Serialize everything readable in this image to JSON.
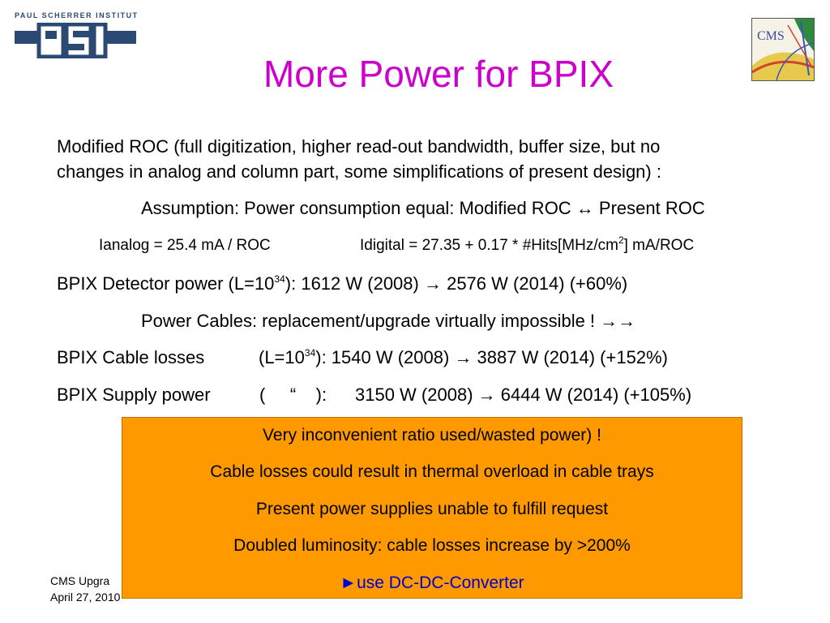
{
  "header": {
    "institute": "PAUL SCHERRER INSTITUT",
    "logo_text": "PSI",
    "cms_logo_text": "CMS",
    "title": "More Power for BPIX"
  },
  "body": {
    "line1": "Modified ROC (full digitization, higher read-out bandwidth, buffer size, but no",
    "line2": "changes in analog and column part, some simplifications of present design) :",
    "assumption": "Assumption: Power consumption equal:  Modified ROC ↔ Present ROC",
    "ianalog": "Ianalog = 25.4 mA / ROC",
    "idigital_prefix": "Idigital  = 27.35 + 0.17 * #Hits[MHz/cm",
    "idigital_exp": "2",
    "idigital_suffix": "] mA/ROC",
    "detector_prefix": "BPIX Detector power (L=10",
    "detector_exp": "34",
    "detector_suffix": "): 1612 W (2008)  → 2576 W (2014)   (+60%)",
    "cables": "Power Cables: replacement/upgrade virtually impossible !  →→",
    "losses_label": "BPIX Cable losses",
    "losses_prefix": "(L=10",
    "losses_exp": "34",
    "losses_suffix": "):  1540 W (2008) → 3887 W (2014)  (+152%)",
    "supply_label": "BPIX Supply power",
    "supply_paren": "(     “    ):",
    "supply_values": "3150 W (2008) → 6444 W (2014)  (+105%)"
  },
  "box": {
    "items": [
      "Very inconvenient ratio used/wasted power) !",
      "Cable losses  could result in thermal overload in cable trays",
      "Present power supplies unable to fulfill request",
      "Doubled luminosity: cable losses increase by >200%"
    ],
    "conclusion": "►use DC-DC-Converter"
  },
  "footer": {
    "line1": "CMS Upgra",
    "line2": "April 27, 2010"
  },
  "colors": {
    "title": "#cc00cc",
    "box": "#ff9900",
    "conclusion": "#0000cc",
    "psi_blue": "#2b4a73"
  }
}
